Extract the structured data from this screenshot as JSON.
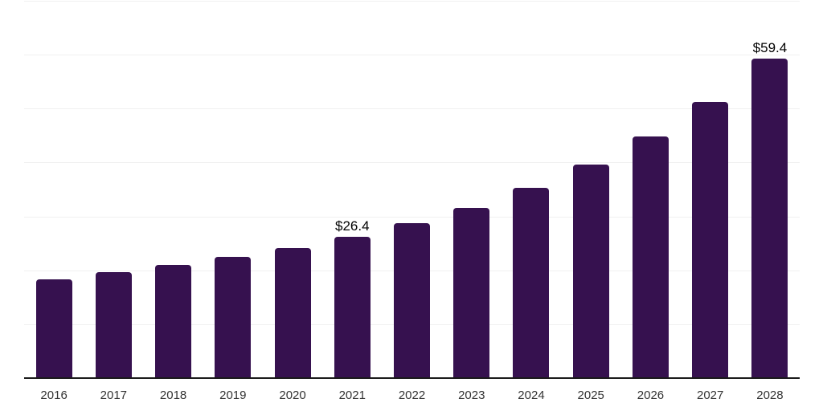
{
  "chart_data": {
    "type": "bar",
    "title": "",
    "xlabel": "",
    "ylabel": "",
    "categories": [
      "2016",
      "2017",
      "2018",
      "2019",
      "2020",
      "2021",
      "2022",
      "2023",
      "2024",
      "2025",
      "2026",
      "2027",
      "2028"
    ],
    "values": [
      18.5,
      19.8,
      21.1,
      22.7,
      24.3,
      26.4,
      28.9,
      31.7,
      35.4,
      39.7,
      45.0,
      51.4,
      59.4
    ],
    "value_labels": [
      "",
      "",
      "",
      "",
      "",
      "$26.4",
      "",
      "",
      "",
      "",
      "",
      "",
      "$59.4"
    ],
    "ylim": [
      0,
      70
    ],
    "gridline_step": 10,
    "grid": "horizontal-only",
    "legend": "none",
    "y_tick_labels_visible": false,
    "bar_color": "#36114f",
    "axis_color": "#1a1a1a",
    "gridline_color": "#f0f0f0",
    "value_label_color": "#000000",
    "tick_label_color": "#333333",
    "background_color": "#ffffff"
  }
}
